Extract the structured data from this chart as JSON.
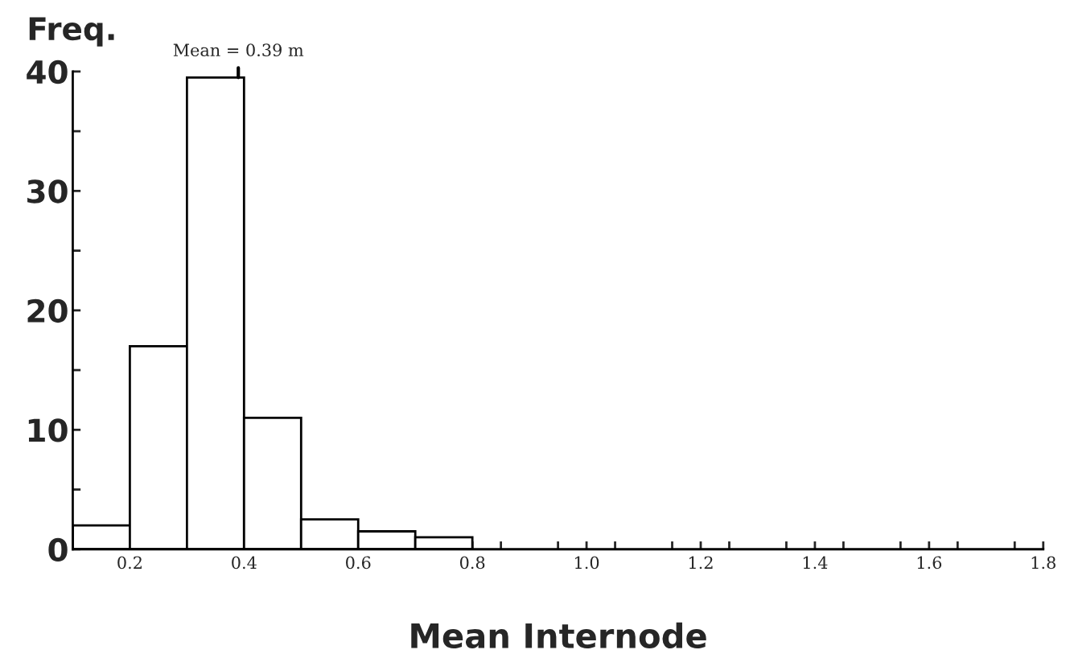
{
  "chart_data": {
    "type": "histogram",
    "xlabel": "Mean Internode",
    "ylabel": "Freq.",
    "bins": [
      0.1,
      0.2,
      0.3,
      0.4,
      0.5,
      0.6,
      0.7,
      0.8
    ],
    "values": [
      2,
      17,
      39.5,
      11,
      2.5,
      1.5,
      1
    ],
    "color": "#ffffff",
    "xlim": [
      0.1,
      1.8
    ],
    "ylim": [
      0,
      40
    ],
    "xticks": [
      {
        "value": 0.15,
        "label": null
      },
      {
        "value": 0.2,
        "label": "0.2"
      },
      {
        "value": 0.25,
        "label": null
      },
      {
        "value": 0.35,
        "label": null
      },
      {
        "value": 0.4,
        "label": "0.4"
      },
      {
        "value": 0.45,
        "label": null
      },
      {
        "value": 0.55,
        "label": null
      },
      {
        "value": 0.6,
        "label": "0.6"
      },
      {
        "value": 0.65,
        "label": null
      },
      {
        "value": 0.75,
        "label": null
      },
      {
        "value": 0.8,
        "label": "0.8"
      },
      {
        "value": 0.85,
        "label": null
      },
      {
        "value": 0.95,
        "label": null
      },
      {
        "value": 1.0,
        "label": "1.0"
      },
      {
        "value": 1.05,
        "label": null
      },
      {
        "value": 1.15,
        "label": null
      },
      {
        "value": 1.2,
        "label": "1.2"
      },
      {
        "value": 1.25,
        "label": null
      },
      {
        "value": 1.35,
        "label": null
      },
      {
        "value": 1.4,
        "label": "1.4"
      },
      {
        "value": 1.45,
        "label": null
      },
      {
        "value": 1.55,
        "label": null
      },
      {
        "value": 1.6,
        "label": "1.6"
      },
      {
        "value": 1.65,
        "label": null
      },
      {
        "value": 1.75,
        "label": null
      },
      {
        "value": 1.8,
        "label": "1.8"
      }
    ],
    "yticks": [
      0,
      {
        "value": 5,
        "label": null
      },
      10,
      {
        "value": 15,
        "label": null
      },
      20,
      {
        "value": 25,
        "label": null
      },
      30,
      {
        "value": 35,
        "label": null
      },
      40
    ],
    "annotations": [
      {
        "text": "Mean = 0.39 m",
        "x": 0.39,
        "y": 39.5
      }
    ],
    "grid": false,
    "legend": false
  }
}
